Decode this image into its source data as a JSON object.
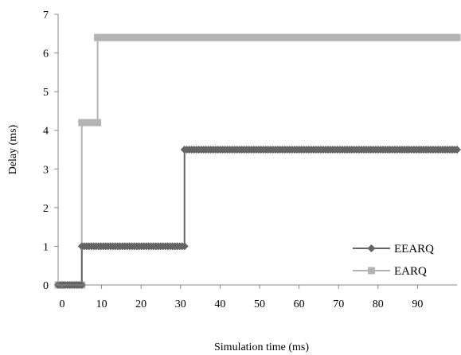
{
  "chart_data": {
    "type": "line",
    "title": "",
    "xlabel": "Simulation time (ms)",
    "ylabel": "Delay (ms)",
    "xlim": [
      -1,
      100
    ],
    "ylim": [
      0,
      7
    ],
    "xticks": [
      0,
      10,
      20,
      30,
      40,
      50,
      60,
      70,
      80,
      90
    ],
    "yticks": [
      0,
      1,
      2,
      3,
      4,
      5,
      6,
      7
    ],
    "grid": false,
    "legend_position": "bottom-right",
    "series": [
      {
        "name": "EEARQ",
        "color": "#646464",
        "marker": "diamond",
        "points": [
          [
            -1,
            0
          ],
          [
            5,
            0
          ],
          [
            5,
            1
          ],
          [
            31,
            1
          ],
          [
            31,
            3.5
          ],
          [
            100,
            3.5
          ]
        ]
      },
      {
        "name": "EARQ",
        "color": "#b4b4b4",
        "marker": "square",
        "points": [
          [
            -1,
            0
          ],
          [
            5,
            0
          ],
          [
            5,
            4.2
          ],
          [
            9,
            4.2
          ],
          [
            9,
            6.4
          ],
          [
            100,
            6.4
          ]
        ]
      }
    ]
  }
}
